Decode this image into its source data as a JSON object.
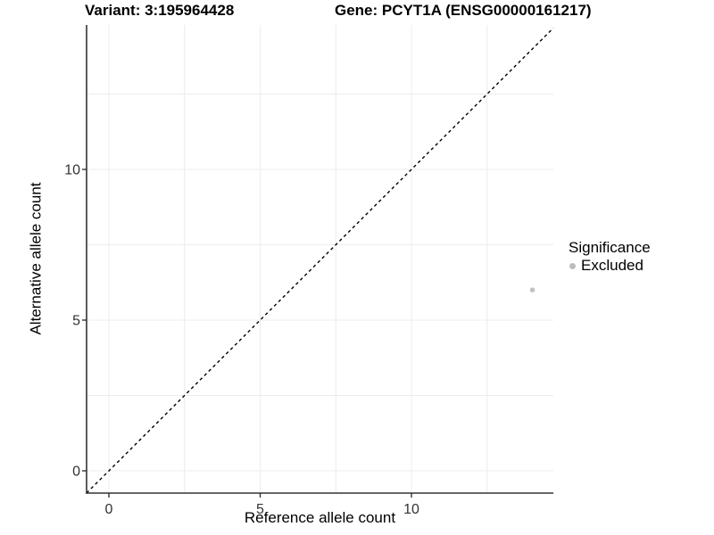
{
  "titles": {
    "variant": "Variant: 3:195964428",
    "gene": "Gene: PCYT1A (ENSG00000161217)"
  },
  "axes": {
    "x_label": "Reference allele count",
    "y_label": "Alternative allele count"
  },
  "legend": {
    "title": "Significance",
    "items": [
      {
        "label": "Excluded",
        "color": "#bdbdbd"
      }
    ]
  },
  "chart_data": {
    "type": "scatter",
    "xlabel": "Reference allele count",
    "ylabel": "Alternative allele count",
    "x_ticks": [
      0,
      5,
      10
    ],
    "y_ticks": [
      0,
      5,
      10
    ],
    "grid_step": 2.5,
    "xlim": [
      -0.74,
      14.7
    ],
    "ylim": [
      -0.77,
      14.8
    ],
    "grid": true,
    "legend_position": "right",
    "identity_line": true,
    "identity_line_style": "dashed",
    "series": [
      {
        "name": "Excluded",
        "color": "#c2c2c2",
        "points": [
          {
            "x": 14,
            "y": 6
          }
        ]
      }
    ],
    "colors": {
      "grid": "#ececec",
      "axis": "#333333",
      "identity_line": "#000000"
    }
  }
}
